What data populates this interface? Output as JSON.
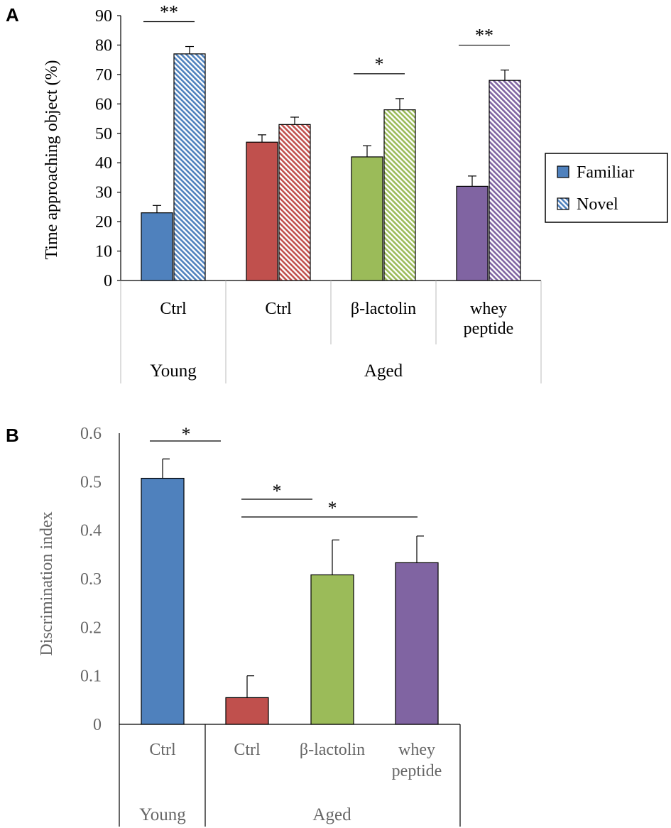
{
  "panels": {
    "a": {
      "letter": "A"
    },
    "b": {
      "letter": "B"
    }
  },
  "chart_data": [
    {
      "type": "bar",
      "ylabel": "Time approaching object (%)",
      "ylim": [
        0,
        90
      ],
      "yticks": [
        0,
        10,
        20,
        30,
        40,
        50,
        60,
        70,
        80,
        90
      ],
      "grid": false,
      "legend": {
        "placement": "right",
        "entries": [
          "Familiar",
          "Novel"
        ]
      },
      "categories": [
        "Ctrl",
        "Ctrl",
        "β-lactolin",
        "whey peptide"
      ],
      "category_lines": [
        [
          "Ctrl"
        ],
        [
          "Ctrl"
        ],
        [
          "β-lactolin"
        ],
        [
          "whey",
          "peptide"
        ]
      ],
      "groups": [
        {
          "label": "Young",
          "span": [
            0,
            0
          ]
        },
        {
          "label": "Aged",
          "span": [
            1,
            3
          ]
        }
      ],
      "series": [
        {
          "name": "Familiar",
          "pattern": "solid",
          "values": [
            23,
            47,
            42,
            32
          ],
          "errors": [
            2.5,
            2.5,
            3.8,
            3.5
          ]
        },
        {
          "name": "Novel",
          "pattern": "hatched",
          "values": [
            77,
            53,
            58,
            68
          ],
          "errors": [
            2.5,
            2.5,
            3.8,
            3.5
          ]
        }
      ],
      "bar_colors": [
        "#4F81BD",
        "#C0504D",
        "#9BBB59",
        "#8064A2"
      ],
      "annotations": [
        {
          "text": "**",
          "category": 0
        },
        {
          "text": "*",
          "category": 2
        },
        {
          "text": "**",
          "category": 3
        }
      ]
    },
    {
      "type": "bar",
      "ylabel": "Discrimination index",
      "ylim": [
        0,
        0.6
      ],
      "yticks": [
        0,
        0.1,
        0.2,
        0.3,
        0.4,
        0.5,
        0.6
      ],
      "grid": false,
      "categories": [
        "Ctrl",
        "Ctrl",
        "β-lactolin",
        "whey peptide"
      ],
      "category_lines": [
        [
          "Ctrl"
        ],
        [
          "Ctrl"
        ],
        [
          "β-lactolin"
        ],
        [
          "whey",
          "peptide"
        ]
      ],
      "groups": [
        {
          "label": "Young",
          "span": [
            0,
            0
          ]
        },
        {
          "label": "Aged",
          "span": [
            1,
            3
          ]
        }
      ],
      "values": [
        0.507,
        0.055,
        0.308,
        0.333
      ],
      "errors": [
        0.04,
        0.045,
        0.072,
        0.055
      ],
      "bar_colors": [
        "#4F81BD",
        "#C0504D",
        "#9BBB59",
        "#8064A2"
      ],
      "annotations": [
        {
          "text": "*",
          "from": 0,
          "to": 0
        },
        {
          "text": "*",
          "from": 1,
          "to": 2
        },
        {
          "text": "*",
          "from": 1,
          "to": 3
        }
      ]
    }
  ]
}
